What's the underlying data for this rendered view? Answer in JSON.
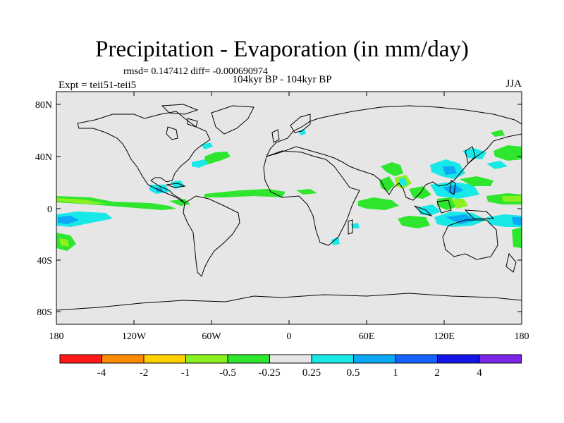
{
  "title": "Precipitation - Evaporation (in mm/day)",
  "stats": "rmsd= 0.147412 diff= -0.000690974",
  "left_string": "Expt = teii51-teii5",
  "center_string": "104kyr BP - 104kyr BP",
  "right_string": "JJA",
  "axes": {
    "lat_ticks": [
      "80N",
      "40N",
      "0",
      "40S",
      "80S"
    ],
    "lon_ticks": [
      "180",
      "120W",
      "60W",
      "0",
      "60E",
      "120E",
      "180"
    ]
  },
  "colorbar": {
    "colors": [
      "#ff1a1a",
      "#ff8c00",
      "#ffd000",
      "#8cf020",
      "#2ee62e",
      "#e6e6e6",
      "#19e8e8",
      "#0aa8f5",
      "#1463ff",
      "#1414e6",
      "#7a28e6"
    ],
    "labels": [
      "-4",
      "-2",
      "-1",
      "-0.5",
      "-0.25",
      "0.25",
      "0.5",
      "1",
      "2",
      "4"
    ]
  },
  "map_colors": {
    "background": "#e6e6e6",
    "coast": "#000000"
  }
}
